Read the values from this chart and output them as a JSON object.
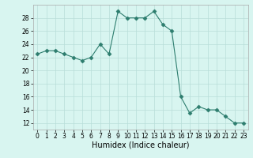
{
  "x": [
    0,
    1,
    2,
    3,
    4,
    5,
    6,
    7,
    8,
    9,
    10,
    11,
    12,
    13,
    14,
    15,
    16,
    17,
    18,
    19,
    20,
    21,
    22,
    23
  ],
  "y": [
    22.5,
    23.0,
    23.0,
    22.5,
    22.0,
    21.5,
    22.0,
    24.0,
    22.5,
    29.0,
    28.0,
    28.0,
    28.0,
    29.0,
    27.0,
    26.0,
    16.0,
    13.5,
    14.5,
    14.0,
    14.0,
    13.0,
    12.0,
    12.0
  ],
  "line_color": "#2d7d6e",
  "marker": "D",
  "marker_size": 2.5,
  "bg_color": "#d8f5f0",
  "grid_color": "#b8ddd8",
  "xlabel": "Humidex (Indice chaleur)",
  "xlim": [
    -0.5,
    23.5
  ],
  "ylim": [
    11,
    30
  ],
  "yticks": [
    12,
    14,
    16,
    18,
    20,
    22,
    24,
    26,
    28
  ],
  "xticks": [
    0,
    1,
    2,
    3,
    4,
    5,
    6,
    7,
    8,
    9,
    10,
    11,
    12,
    13,
    14,
    15,
    16,
    17,
    18,
    19,
    20,
    21,
    22,
    23
  ],
  "label_fontsize": 7,
  "tick_fontsize": 5.5
}
